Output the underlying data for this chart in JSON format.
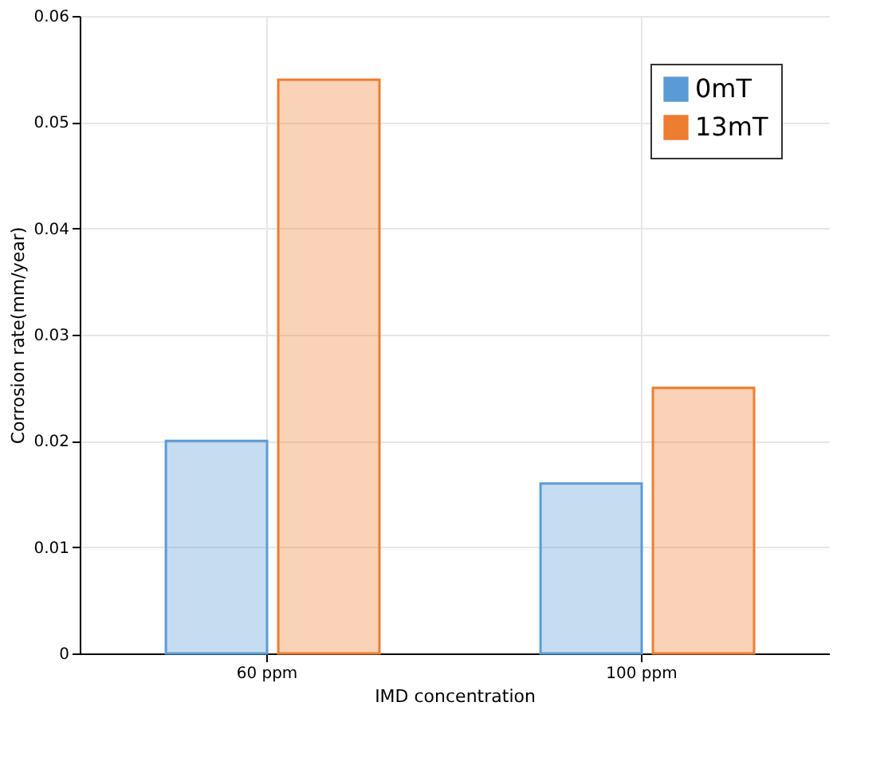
{
  "chart_data": {
    "type": "bar",
    "xlabel": "IMD concentration",
    "ylabel": "Corrosion rate(mm/year)",
    "categories": [
      "60 ppm",
      "100 ppm"
    ],
    "series": [
      {
        "name": "0mT",
        "color": "#5b9bd5",
        "values": [
          0.02,
          0.016
        ]
      },
      {
        "name": "13mT",
        "color": "#ed7d31",
        "values": [
          0.054,
          0.025
        ]
      }
    ],
    "ylim": [
      0,
      0.06
    ],
    "yticks": [
      0,
      0.01,
      0.02,
      0.03,
      0.04,
      0.05,
      0.06
    ],
    "grid": true,
    "legend": "top right"
  }
}
